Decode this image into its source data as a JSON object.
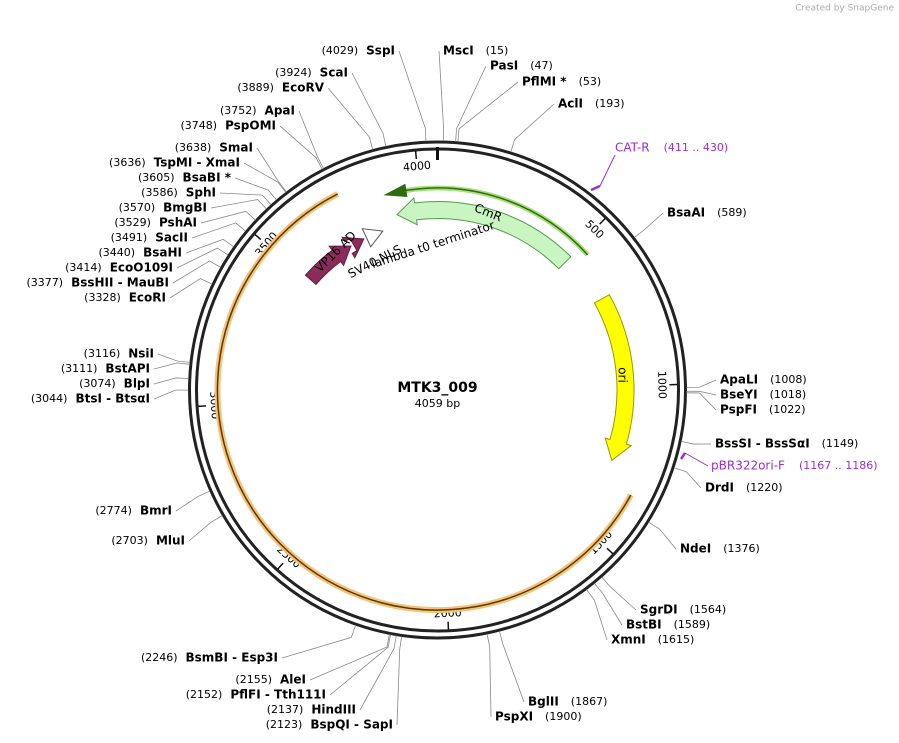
{
  "header": {
    "credit": "Created by SnapGene"
  },
  "plasmid": {
    "name": "MTK3_009",
    "length": {
      "value": 4059,
      "label": "4059 bp"
    },
    "ruler": [
      500,
      1000,
      1500,
      2000,
      2500,
      3000,
      3500,
      4000
    ]
  },
  "features": [
    {
      "name": "CmR"
    },
    {
      "name": "ori"
    },
    {
      "name": "lambda t0 terminator"
    },
    {
      "name": "SV40 NLS"
    },
    {
      "name": "VP16 AD"
    }
  ],
  "primers": [
    {
      "name": "CAT-R",
      "range": "(411 .. 430)"
    },
    {
      "name": "pBR322ori-F",
      "range": "(1167 .. 1186)"
    }
  ],
  "sites": [
    {
      "name": "SspI",
      "position": {
        "value": 4029,
        "label": "(4029)"
      }
    },
    {
      "name": "ScaI",
      "position": {
        "value": 3924,
        "label": "(3924)"
      }
    },
    {
      "name": "EcoRV",
      "position": {
        "value": 3889,
        "label": "(3889)"
      }
    },
    {
      "name": "ApaI",
      "position": {
        "value": 3752,
        "label": "(3752)"
      }
    },
    {
      "name": "PspOMI",
      "position": {
        "value": 3748,
        "label": "(3748)"
      }
    },
    {
      "name": "SmaI",
      "position": {
        "value": 3638,
        "label": "(3638)"
      }
    },
    {
      "name": "TspMI - XmaI",
      "position": {
        "value": 3636,
        "label": "(3636)"
      }
    },
    {
      "name": "BsaBI *",
      "position": {
        "value": 3605,
        "label": "(3605)"
      }
    },
    {
      "name": "SphI",
      "position": {
        "value": 3586,
        "label": "(3586)"
      }
    },
    {
      "name": "BmgBI",
      "position": {
        "value": 3570,
        "label": "(3570)"
      }
    },
    {
      "name": "PshAI",
      "position": {
        "value": 3529,
        "label": "(3529)"
      }
    },
    {
      "name": "SacII",
      "position": {
        "value": 3491,
        "label": "(3491)"
      }
    },
    {
      "name": "BsaHI",
      "position": {
        "value": 3440,
        "label": "(3440)"
      }
    },
    {
      "name": "EcoO109I",
      "position": {
        "value": 3414,
        "label": "(3414)"
      }
    },
    {
      "name": "BssHII - MauBI",
      "position": {
        "value": 3377,
        "label": "(3377)"
      }
    },
    {
      "name": "EcoRI",
      "position": {
        "value": 3328,
        "label": "(3328)"
      }
    },
    {
      "name": "NsiI",
      "position": {
        "value": 3116,
        "label": "(3116)"
      }
    },
    {
      "name": "BstAPI",
      "position": {
        "value": 3111,
        "label": "(3111)"
      }
    },
    {
      "name": "BlpI",
      "position": {
        "value": 3074,
        "label": "(3074)"
      }
    },
    {
      "name": "BtsI - BtsαI",
      "position": {
        "value": 3044,
        "label": "(3044)"
      }
    },
    {
      "name": "BmrI",
      "position": {
        "value": 2774,
        "label": "(2774)"
      }
    },
    {
      "name": "MluI",
      "position": {
        "value": 2703,
        "label": "(2703)"
      }
    },
    {
      "name": "BsmBI - Esp3I",
      "position": {
        "value": 2246,
        "label": "(2246)"
      }
    },
    {
      "name": "AleI",
      "position": {
        "value": 2155,
        "label": "(2155)"
      }
    },
    {
      "name": "PflFI - Tth111I",
      "position": {
        "value": 2152,
        "label": "(2152)"
      }
    },
    {
      "name": "HindIII",
      "position": {
        "value": 2137,
        "label": "(2137)"
      }
    },
    {
      "name": "BspQI - SapI",
      "position": {
        "value": 2123,
        "label": "(2123)"
      }
    },
    {
      "name": "MscI",
      "position": {
        "value": 15,
        "label": "(15)"
      }
    },
    {
      "name": "PasI",
      "position": {
        "value": 47,
        "label": "(47)"
      }
    },
    {
      "name": "PflMI *",
      "position": {
        "value": 53,
        "label": "(53)"
      }
    },
    {
      "name": "AclI",
      "position": {
        "value": 193,
        "label": "(193)"
      }
    },
    {
      "name": "BsaAI",
      "position": {
        "value": 589,
        "label": "(589)"
      }
    },
    {
      "name": "ApaLI",
      "position": {
        "value": 1008,
        "label": "(1008)"
      }
    },
    {
      "name": "BseYI",
      "position": {
        "value": 1018,
        "label": "(1018)"
      }
    },
    {
      "name": "PspFI",
      "position": {
        "value": 1022,
        "label": "(1022)"
      }
    },
    {
      "name": "BssSI - BssSαI",
      "position": {
        "value": 1149,
        "label": "(1149)"
      }
    },
    {
      "name": "DrdI",
      "position": {
        "value": 1220,
        "label": "(1220)"
      }
    },
    {
      "name": "NdeI",
      "position": {
        "value": 1376,
        "label": "(1376)"
      }
    },
    {
      "name": "SgrDI",
      "position": {
        "value": 1564,
        "label": "(1564)"
      }
    },
    {
      "name": "BstBI",
      "position": {
        "value": 1589,
        "label": "(1589)"
      }
    },
    {
      "name": "XmnI",
      "position": {
        "value": 1615,
        "label": "(1615)"
      }
    },
    {
      "name": "BglII",
      "position": {
        "value": 1867,
        "label": "(1867)"
      }
    },
    {
      "name": "PspXI",
      "position": {
        "value": 1900,
        "label": "(1900)"
      }
    }
  ]
}
